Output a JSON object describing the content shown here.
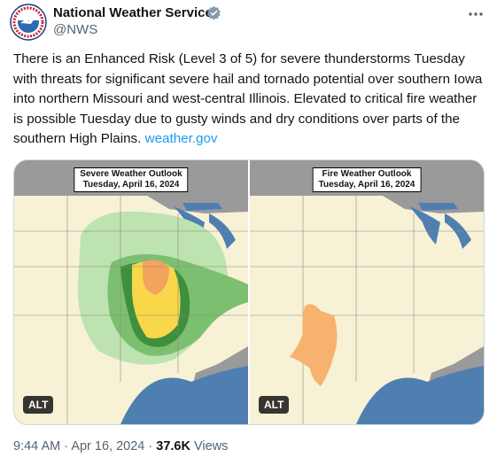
{
  "author": {
    "name": "National Weather Service",
    "handle": "@NWS"
  },
  "tweet": {
    "text": "There is an Enhanced Risk (Level 3 of 5) for severe thunderstorms Tuesday with threats for significant severe hail and tornado potential over southern Iowa into northern Missouri and west-central Illinois. Elevated to critical fire weather is possible Tuesday due to gusty winds and dry conditions over parts of the southern High Plains.",
    "link": "weather.gov"
  },
  "media": [
    {
      "title": "Severe Weather Outlook",
      "date": "Tuesday, April 16, 2024",
      "alt_badge": "ALT"
    },
    {
      "title": "Fire Weather Outlook",
      "date": "Tuesday, April 16, 2024",
      "alt_badge": "ALT"
    }
  ],
  "footer": {
    "time": "9:44 AM",
    "separator": "·",
    "date": "Apr 16, 2024",
    "views_count": "37.6K",
    "views_label": "Views"
  }
}
